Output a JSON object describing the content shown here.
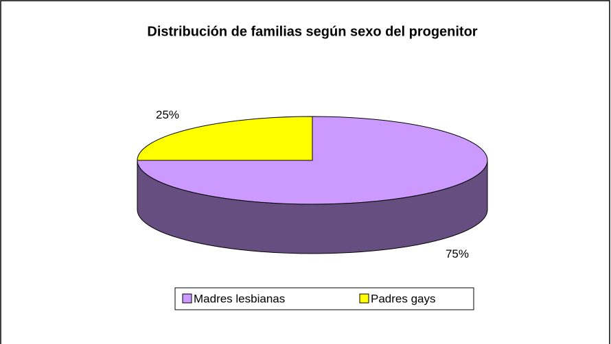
{
  "chart_data": {
    "type": "pie3d",
    "title": "Distribución de familias según sexo del progenitor",
    "categories": [
      "Madres lesbianas",
      "Padres gays"
    ],
    "values": [
      75,
      25
    ],
    "value_labels": [
      "75%",
      "25%"
    ],
    "colors": [
      "#cc99ff",
      "#ffff00"
    ],
    "side_colors": [
      "#664f80",
      "#80801a"
    ],
    "legend": "bottom"
  }
}
